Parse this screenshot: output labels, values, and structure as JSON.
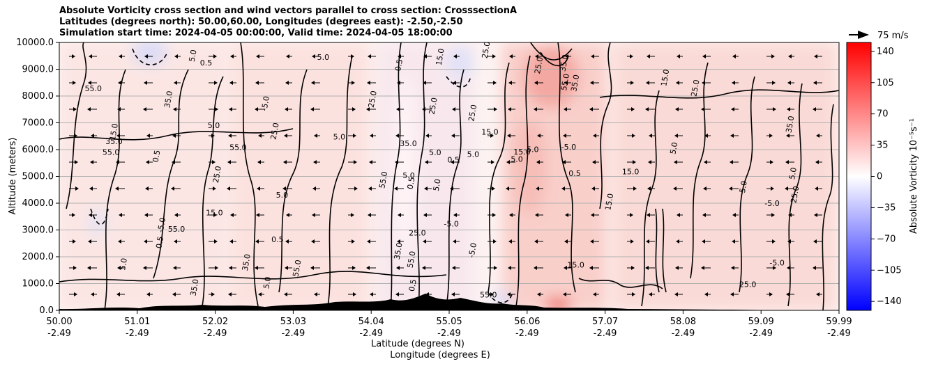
{
  "chart_data": {
    "type": "heatmap",
    "title_lines": [
      "Absolute Vorticity cross section and wind vectors parallel to cross section: CrosssectionA",
      "Latitudes (degrees north): 50.00,60.00, Longitudes (degrees east): -2.50,-2.50",
      "Simulation start time: 2024-04-05 00:00:00, Valid time: 2024-04-05 18:00:00"
    ],
    "ylabel": "Altitude (meters)",
    "xlabel_lines": [
      "Latitude (degrees N)",
      "Longitude (degrees E)"
    ],
    "y_ticks": [
      "0.0",
      "1000.0",
      "2000.0",
      "3000.0",
      "4000.0",
      "5000.0",
      "6000.0",
      "7000.0",
      "8000.0",
      "9000.0",
      "10000.0"
    ],
    "ylim": [
      0,
      10000
    ],
    "x_ticks": [
      {
        "lat": "50.00",
        "lon": "-2.49"
      },
      {
        "lat": "51.01",
        "lon": "-2.49"
      },
      {
        "lat": "52.02",
        "lon": "-2.49"
      },
      {
        "lat": "53.03",
        "lon": "-2.49"
      },
      {
        "lat": "54.04",
        "lon": "-2.49"
      },
      {
        "lat": "55.05",
        "lon": "-2.49"
      },
      {
        "lat": "56.06",
        "lon": "-2.49"
      },
      {
        "lat": "57.07",
        "lon": "-2.49"
      },
      {
        "lat": "58.08",
        "lon": "-2.49"
      },
      {
        "lat": "59.09",
        "lon": "-2.49"
      },
      {
        "lat": "59.99",
        "lon": "-2.49"
      }
    ],
    "grid": "horizontal",
    "colorbar": {
      "label": "Absolute Vorticity 10⁻⁵s⁻¹",
      "ticks": [
        "140",
        "105",
        "70",
        "35",
        "0",
        "−35",
        "−70",
        "−105",
        "−140"
      ],
      "range": [
        -150,
        150
      ],
      "colormap": "bwr",
      "low_color": "#0000ff",
      "mid_color": "#ffffff",
      "high_color": "#ff0000"
    },
    "quiver_key": {
      "label": "75 m/s"
    },
    "contour_labels": [
      "5.0",
      "15.0",
      "25.0",
      "35.0",
      "55.0",
      "-5.0",
      "0.5"
    ],
    "terrain_color": "#000000"
  }
}
